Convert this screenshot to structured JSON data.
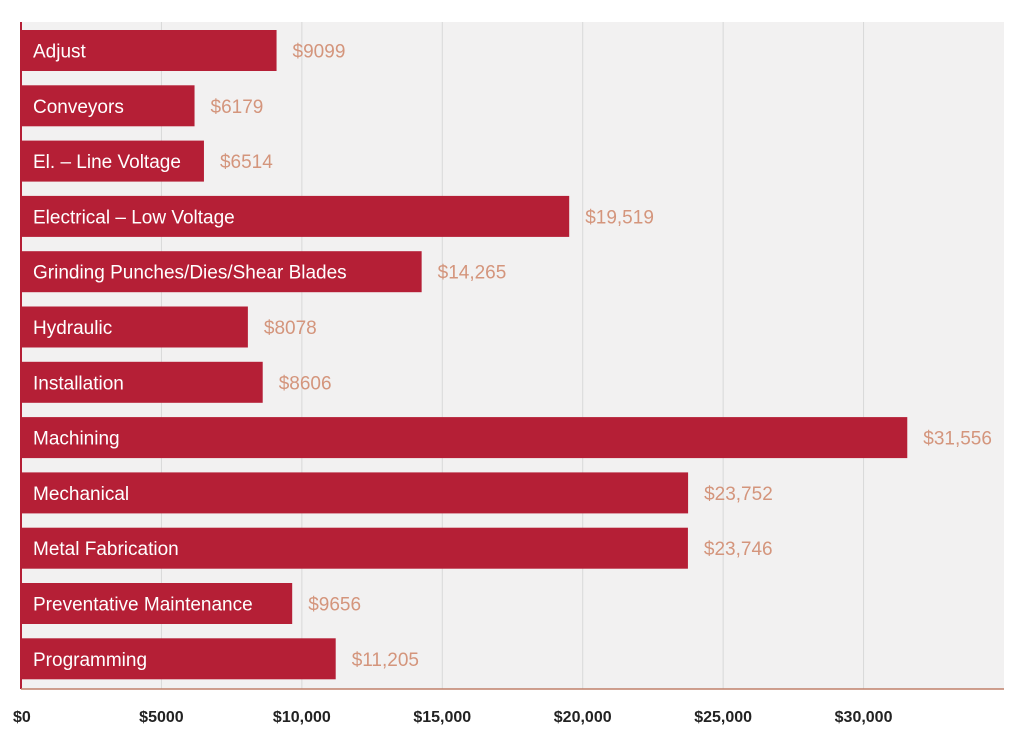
{
  "chart_data": {
    "type": "bar",
    "orientation": "horizontal",
    "title": "",
    "xlabel": "",
    "ylabel": "",
    "categories": [
      "Adjust",
      "Conveyors",
      "El. – Line Voltage",
      "Electrical – Low Voltage",
      "Grinding Punches/Dies/Shear Blades",
      "Hydraulic",
      "Installation",
      "Machining",
      "Mechanical",
      "Metal Fabrication",
      "Preventative Maintenance",
      "Programming"
    ],
    "values": [
      9099,
      6179,
      6514,
      19519,
      14265,
      8078,
      8606,
      31556,
      23752,
      23746,
      9656,
      11205
    ],
    "value_labels": [
      "$9099",
      "$6179",
      "$6514",
      "$19,519",
      "$14,265",
      "$8078",
      "$8606",
      "$31,556",
      "$23,752",
      "$23,746",
      "$9656",
      "$11,205"
    ],
    "x_ticks": [
      0,
      5000,
      10000,
      15000,
      20000,
      25000,
      30000
    ],
    "x_tick_labels": [
      "$0",
      "$5000",
      "$10,000",
      "$15,000",
      "$20,000",
      "$25,000",
      "$30,000"
    ],
    "xlim": [
      0,
      35000
    ],
    "grid": true,
    "legend": "none",
    "colors": {
      "bar": "#b51f36",
      "value_label": "#d4957c",
      "plot_background": "#f2f1f1",
      "gridline": "#d8d8d8",
      "axis": "#c0806a"
    }
  }
}
